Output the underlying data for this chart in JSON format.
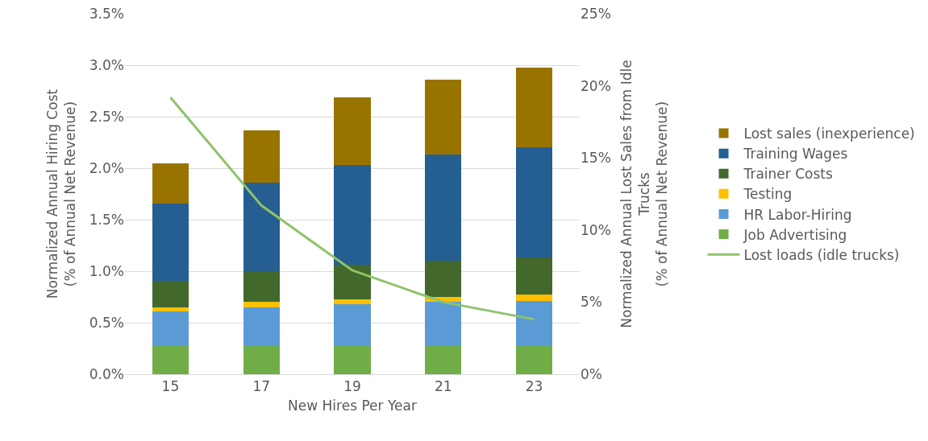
{
  "chart_data": {
    "type": "bar",
    "stacked": true,
    "categories": [
      "15",
      "17",
      "19",
      "21",
      "23"
    ],
    "xlabel": "New Hires Per Year",
    "ylabel": "Normalized Annual Hiring Cost\n(% of Annual Net Revenue)",
    "y2label": "Normalized Annual Lost Sales from Idle\nTrucks\n(% of Annual Net Revenue)",
    "ylim": [
      0,
      3.5
    ],
    "yticks": [
      {
        "value": 0,
        "label": "0.0%"
      },
      {
        "value": 0.5,
        "label": "0.5%"
      },
      {
        "value": 1,
        "label": "1.0%"
      },
      {
        "value": 1.5,
        "label": "1.5%"
      },
      {
        "value": 2,
        "label": "2.0%"
      },
      {
        "value": 2.5,
        "label": "2.5%"
      },
      {
        "value": 3,
        "label": "3.0%"
      },
      {
        "value": 3.5,
        "label": "3.5%"
      }
    ],
    "y2lim": [
      0,
      25
    ],
    "y2ticks": [
      {
        "value": 0,
        "label": "0%"
      },
      {
        "value": 5,
        "label": "5%"
      },
      {
        "value": 10,
        "label": "10%"
      },
      {
        "value": 15,
        "label": "15%"
      },
      {
        "value": 20,
        "label": "20%"
      },
      {
        "value": 25,
        "label": "25%"
      }
    ],
    "grid": "y",
    "legend": "right",
    "series": [
      {
        "name": "Job Advertising",
        "color": "#70ad47",
        "values": [
          0.27,
          0.27,
          0.27,
          0.27,
          0.27
        ]
      },
      {
        "name": "HR Labor-Hiring",
        "color": "#5b9bd5",
        "values": [
          0.34,
          0.38,
          0.41,
          0.43,
          0.44
        ]
      },
      {
        "name": "Testing",
        "color": "#ffc000",
        "values": [
          0.04,
          0.05,
          0.05,
          0.05,
          0.06
        ]
      },
      {
        "name": "Trainer Costs",
        "color": "#43682b",
        "values": [
          0.26,
          0.29,
          0.33,
          0.35,
          0.36
        ]
      },
      {
        "name": "Training Wages",
        "color": "#255e91",
        "values": [
          0.75,
          0.87,
          0.97,
          1.03,
          1.07
        ]
      },
      {
        "name": "Lost sales (inexperience)",
        "color": "#997300",
        "values": [
          0.39,
          0.51,
          0.66,
          0.73,
          0.78
        ]
      },
      {
        "name": "Lost loads (idle trucks)",
        "type": "line",
        "axis": "y2",
        "color": "#8fc36a",
        "values": [
          19.2,
          11.7,
          7.2,
          5.0,
          3.8
        ]
      }
    ]
  }
}
